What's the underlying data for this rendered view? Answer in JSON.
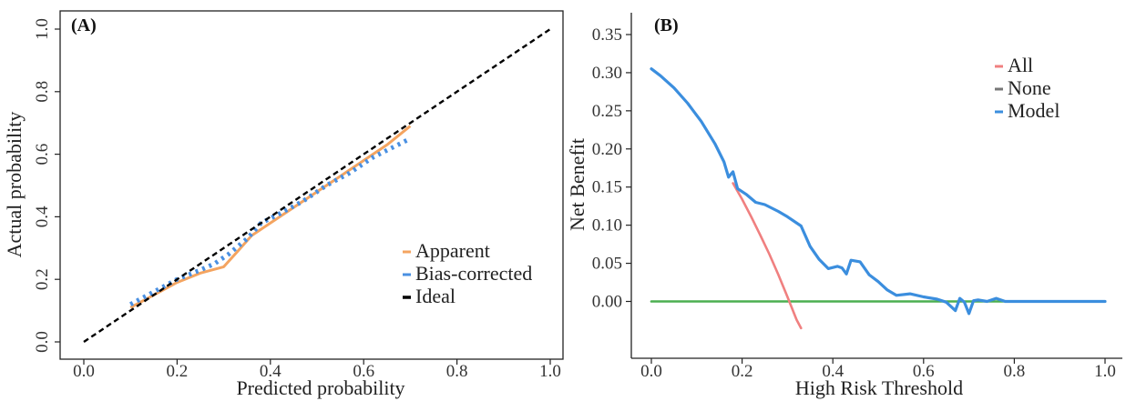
{
  "chart_data": [
    {
      "type": "line",
      "panel_label": "(A)",
      "xlabel": "Predicted probability",
      "ylabel": "Actual probability",
      "xlim": [
        0,
        1
      ],
      "ylim": [
        0,
        1
      ],
      "xticks": [
        "0.0",
        "0.2",
        "0.4",
        "0.6",
        "0.8",
        "1.0"
      ],
      "yticks": [
        "0.0",
        "0.2",
        "0.4",
        "0.6",
        "0.8",
        "1.0"
      ],
      "grid": false,
      "legend_position": "bottom-right",
      "series": [
        {
          "name": "Apparent",
          "color": "#f4a460",
          "style": "solid",
          "points": [
            [
              0.1,
              0.11
            ],
            [
              0.15,
              0.15
            ],
            [
              0.2,
              0.19
            ],
            [
              0.25,
              0.22
            ],
            [
              0.3,
              0.24
            ],
            [
              0.33,
              0.29
            ],
            [
              0.36,
              0.34
            ],
            [
              0.4,
              0.38
            ],
            [
              0.45,
              0.43
            ],
            [
              0.5,
              0.48
            ],
            [
              0.55,
              0.53
            ],
            [
              0.6,
              0.58
            ],
            [
              0.65,
              0.63
            ],
            [
              0.7,
              0.69
            ]
          ]
        },
        {
          "name": "Bias-corrected",
          "color": "#4a90e2",
          "style": "dotted",
          "points": [
            [
              0.1,
              0.12
            ],
            [
              0.15,
              0.16
            ],
            [
              0.2,
              0.2
            ],
            [
              0.25,
              0.23
            ],
            [
              0.28,
              0.25
            ],
            [
              0.31,
              0.28
            ],
            [
              0.35,
              0.33
            ],
            [
              0.38,
              0.38
            ],
            [
              0.42,
              0.41
            ],
            [
              0.47,
              0.45
            ],
            [
              0.52,
              0.5
            ],
            [
              0.57,
              0.54
            ],
            [
              0.62,
              0.59
            ],
            [
              0.66,
              0.62
            ],
            [
              0.7,
              0.65
            ]
          ]
        },
        {
          "name": "Ideal",
          "color": "#000000",
          "style": "dashed",
          "points": [
            [
              0,
              0
            ],
            [
              1,
              1
            ]
          ]
        }
      ]
    },
    {
      "type": "line",
      "panel_label": "(B)",
      "xlabel": "High Risk Threshold",
      "ylabel": "Net Benefit",
      "xlim": [
        -0.05,
        1.0
      ],
      "ylim": [
        -0.05,
        0.35
      ],
      "xticks": [
        "0.0",
        "0.2",
        "0.4",
        "0.6",
        "0.8",
        "1.0"
      ],
      "yticks": [
        "0.00",
        "0.05",
        "0.10",
        "0.15",
        "0.20",
        "0.25",
        "0.30",
        "0.35"
      ],
      "grid": false,
      "legend_position": "top-right",
      "series": [
        {
          "name": "All",
          "color": "#f08080",
          "style": "solid",
          "points": [
            [
              0.18,
              0.155
            ],
            [
              0.2,
              0.134
            ],
            [
              0.22,
              0.111
            ],
            [
              0.24,
              0.087
            ],
            [
              0.26,
              0.062
            ],
            [
              0.28,
              0.035
            ],
            [
              0.3,
              0.006
            ],
            [
              0.32,
              -0.024
            ],
            [
              0.33,
              -0.035
            ]
          ]
        },
        {
          "name": "None",
          "color": "#4caf50",
          "style": "solid",
          "points": [
            [
              0.0,
              0.0
            ],
            [
              1.0,
              0.0
            ]
          ]
        },
        {
          "name": "Model",
          "color": "#3b8ede",
          "style": "solid",
          "points": [
            [
              0.0,
              0.305
            ],
            [
              0.02,
              0.296
            ],
            [
              0.05,
              0.28
            ],
            [
              0.08,
              0.26
            ],
            [
              0.11,
              0.236
            ],
            [
              0.14,
              0.207
            ],
            [
              0.16,
              0.183
            ],
            [
              0.17,
              0.163
            ],
            [
              0.18,
              0.17
            ],
            [
              0.19,
              0.148
            ],
            [
              0.21,
              0.14
            ],
            [
              0.23,
              0.13
            ],
            [
              0.25,
              0.127
            ],
            [
              0.28,
              0.118
            ],
            [
              0.3,
              0.111
            ],
            [
              0.33,
              0.099
            ],
            [
              0.35,
              0.072
            ],
            [
              0.37,
              0.055
            ],
            [
              0.39,
              0.043
            ],
            [
              0.41,
              0.046
            ],
            [
              0.42,
              0.044
            ],
            [
              0.43,
              0.036
            ],
            [
              0.44,
              0.054
            ],
            [
              0.46,
              0.052
            ],
            [
              0.48,
              0.035
            ],
            [
              0.5,
              0.026
            ],
            [
              0.52,
              0.015
            ],
            [
              0.54,
              0.008
            ],
            [
              0.57,
              0.01
            ],
            [
              0.6,
              0.006
            ],
            [
              0.63,
              0.003
            ],
            [
              0.65,
              -0.001
            ],
            [
              0.67,
              -0.012
            ],
            [
              0.68,
              0.004
            ],
            [
              0.69,
              -0.001
            ],
            [
              0.7,
              -0.016
            ],
            [
              0.71,
              0.001
            ],
            [
              0.72,
              0.002
            ],
            [
              0.74,
              0.0
            ],
            [
              0.76,
              0.004
            ],
            [
              0.78,
              0.0
            ],
            [
              0.82,
              0.0
            ],
            [
              0.9,
              0.0
            ],
            [
              1.0,
              0.0
            ]
          ]
        }
      ]
    }
  ]
}
